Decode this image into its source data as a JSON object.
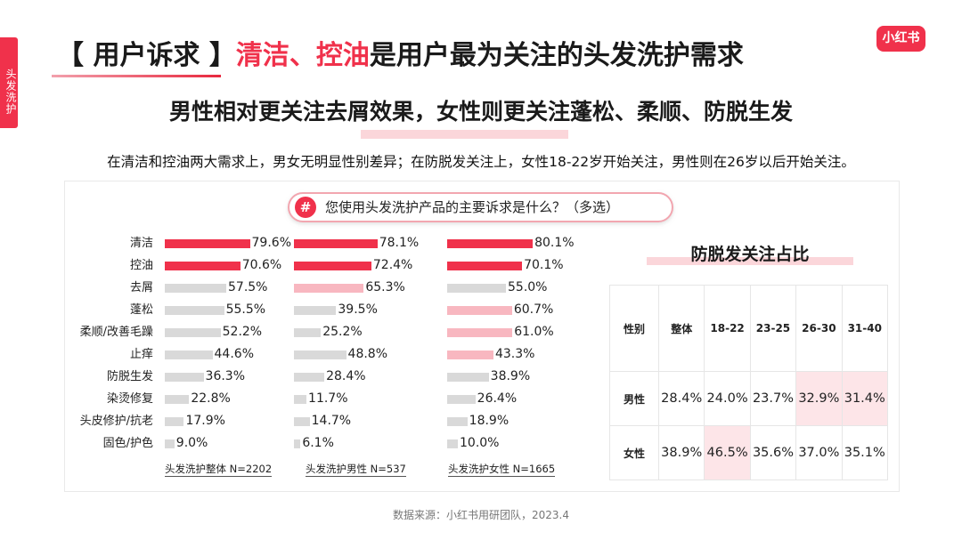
{
  "side_tab": "头发洗护",
  "title": {
    "prefix": "【 用户诉求 】",
    "highlight": "清洁、控油",
    "suffix": "是用户最为关注的头发洗护需求"
  },
  "logo": "小红书",
  "subtitle": "男性相对更关注去屑效果，女性则更关注蓬松、柔顺、防脱生发",
  "description": "在清洁和控油两大需求上，男女无明显性别差异；在防脱发关注上，女性18-22岁开始关注，男性则在26岁以后开始关注。",
  "question": {
    "icon": "hash-icon",
    "hash": "#",
    "text": "您使用头发洗护产品的主要诉求是什么？（多选）"
  },
  "chart_data": {
    "type": "bar",
    "categories": [
      "清洁",
      "控油",
      "去屑",
      "蓬松",
      "柔顺/改善毛躁",
      "止痒",
      "防脱生发",
      "染烫修复",
      "头皮修护/抗老",
      "固色/护色"
    ],
    "series": [
      {
        "name": "头发洗护整体 N=2202",
        "values": [
          79.6,
          70.6,
          57.5,
          55.5,
          52.2,
          44.6,
          36.3,
          22.8,
          17.9,
          9.0
        ]
      },
      {
        "name": "头发洗护男性 N=537",
        "values": [
          78.1,
          72.4,
          65.3,
          39.5,
          25.2,
          48.8,
          28.4,
          11.7,
          14.7,
          6.1
        ]
      },
      {
        "name": "头发洗护女性 N=1665",
        "values": [
          80.1,
          70.1,
          55.0,
          60.7,
          61.0,
          43.3,
          38.9,
          26.4,
          18.9,
          10.0
        ]
      }
    ],
    "value_suffix": "%",
    "colors": {
      "top": "#f0314b",
      "highlight": "#f8b7c0",
      "neutral": "#d9d9d9"
    },
    "highlight_rules": {
      "top": [
        [
          0,
          0
        ],
        [
          0,
          1
        ],
        [
          1,
          0
        ],
        [
          1,
          1
        ],
        [
          2,
          0
        ],
        [
          2,
          1
        ]
      ],
      "highlight": [
        [
          1,
          2
        ],
        [
          2,
          3
        ],
        [
          2,
          4
        ],
        [
          2,
          5
        ]
      ]
    }
  },
  "table": {
    "title": "防脱发关注占比",
    "headers": [
      "性别",
      "整体",
      "18-22",
      "23-25",
      "26-30",
      "31-40"
    ],
    "rows": [
      {
        "label": "男性",
        "cells": [
          "28.4%",
          "24.0%",
          "23.7%",
          "32.9%",
          "31.4%"
        ]
      },
      {
        "label": "女性",
        "cells": [
          "38.9%",
          "46.5%",
          "35.6%",
          "37.0%",
          "35.1%"
        ]
      }
    ],
    "highlight_color": "#fde5e8"
  },
  "source": "数据来源：小红书用研团队，2023.4"
}
